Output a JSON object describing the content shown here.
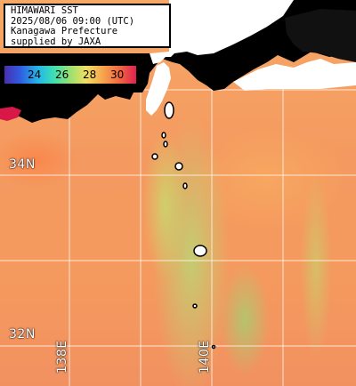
{
  "title_lines": [
    "HIMAWARI SST",
    "2025/08/06 09:00 (UTC)",
    "Kanagawa Prefecture",
    "supplied by JAXA"
  ],
  "scale": {
    "ticks": [
      "24",
      "26",
      "28",
      "30"
    ],
    "colors": [
      "#4a2fb0",
      "#25b8e8",
      "#9be070",
      "#f0e060",
      "#f6a850",
      "#e02050"
    ]
  },
  "latitude_labels": [
    "34N",
    "32N"
  ],
  "longitude_labels": [
    "138E",
    "140E"
  ],
  "colors": {
    "land": "#000000",
    "ocean_warm": "#f59a5e",
    "ocean_cool": "#b8dc70"
  }
}
